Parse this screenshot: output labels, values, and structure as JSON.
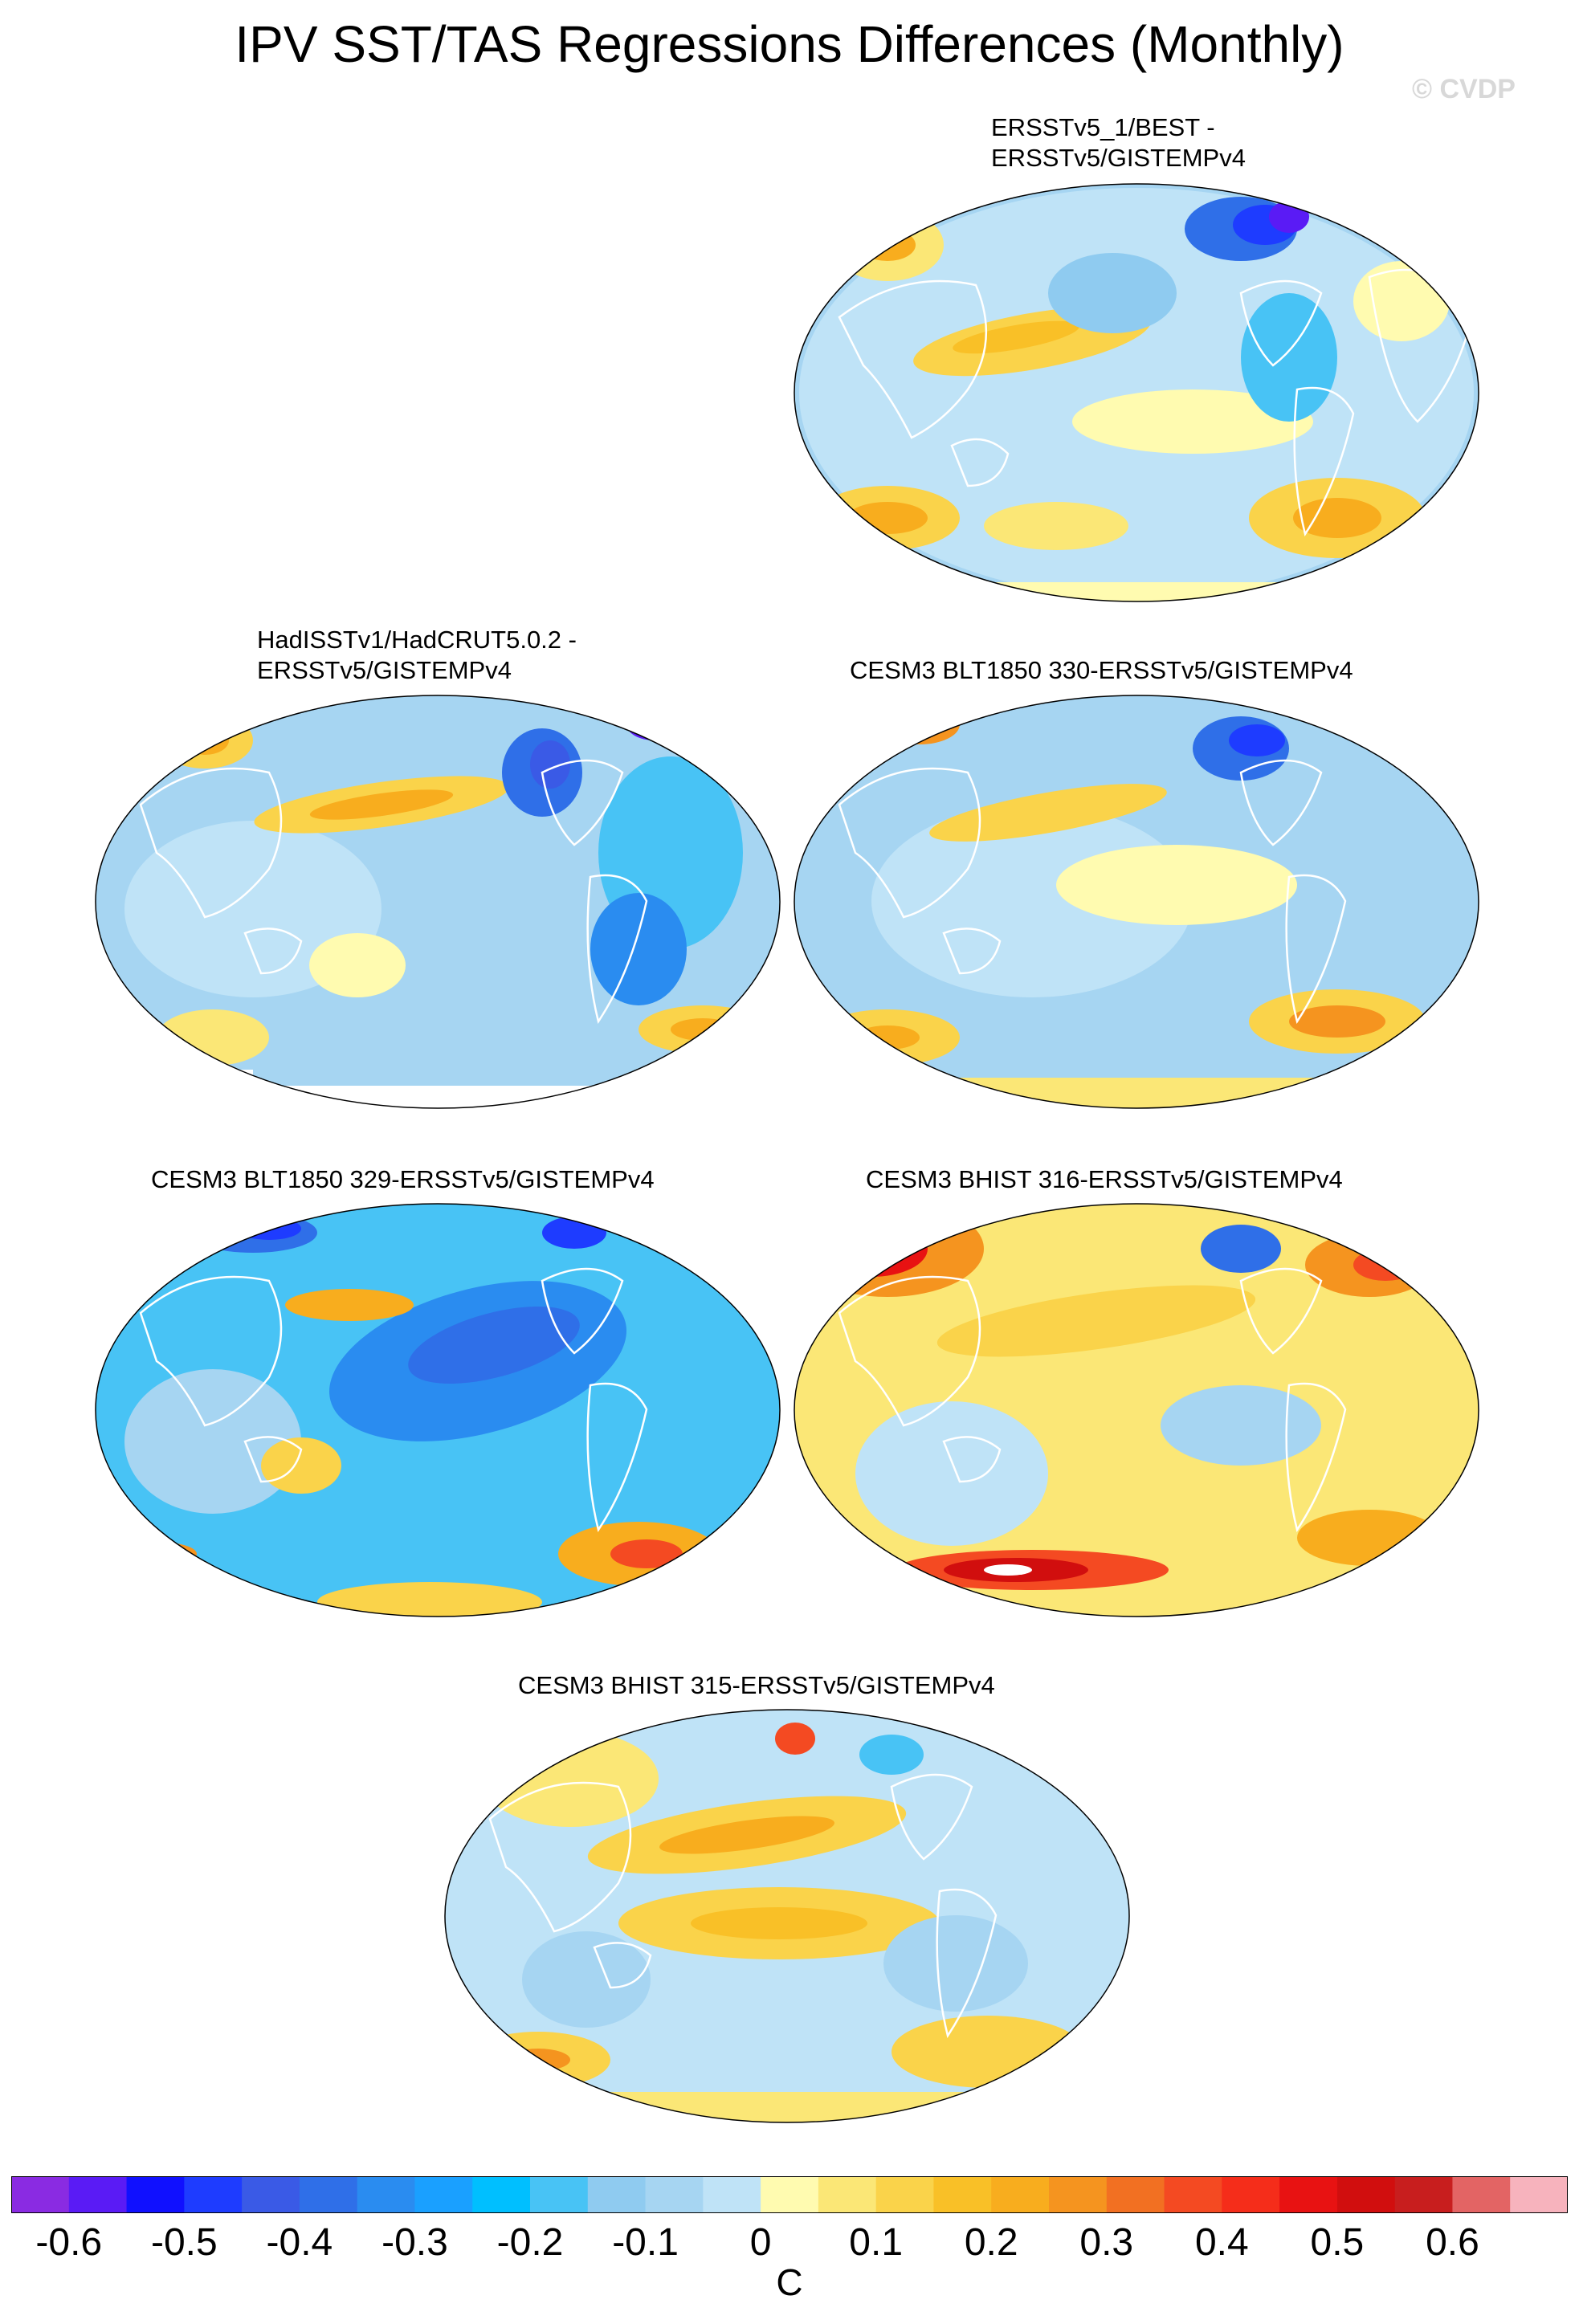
{
  "title": "IPV SST/TAS Regressions Differences (Monthly)",
  "copyright": "© CVDP",
  "panels": [
    {
      "id": "p1",
      "title": "ERSSTv5_1/BEST -\nERSSTv5/GISTEMPv4"
    },
    {
      "id": "p2",
      "title": "HadISSTv1/HadCRUT5.0.2 -\nERSSTv5/GISTEMPv4"
    },
    {
      "id": "p3",
      "title": "CESM3 BLT1850 330-ERSSTv5/GISTEMPv4"
    },
    {
      "id": "p4",
      "title": "CESM3 BLT1850 329-ERSSTv5/GISTEMPv4"
    },
    {
      "id": "p5",
      "title": "CESM3 BHIST 316-ERSSTv5/GISTEMPv4"
    },
    {
      "id": "p6",
      "title": "CESM3 BHIST 315-ERSSTv5/GISTEMPv4"
    }
  ],
  "colorbar": {
    "colors": [
      "#8a2be2",
      "#5a1bf5",
      "#1010ff",
      "#1e3cff",
      "#3a5ae6",
      "#2f6fe8",
      "#2a8cf0",
      "#1aa0ff",
      "#00bfff",
      "#48c3f5",
      "#8fcbf0",
      "#a6d5f2",
      "#bfe3f7",
      "#fffbb0",
      "#fbe776",
      "#fad34a",
      "#f9c027",
      "#f8ad1e",
      "#f5941f",
      "#f27022",
      "#f44a22",
      "#f52d1a",
      "#e81212",
      "#d10e0e",
      "#c81e1e",
      "#e36464",
      "#f7b3bd"
    ],
    "tick_labels": [
      "-0.6",
      "-0.5",
      "-0.4",
      "-0.3",
      "-0.2",
      "-0.1",
      "0",
      "0.1",
      "0.2",
      "0.3",
      "0.4",
      "0.5",
      "0.6"
    ],
    "units": "C"
  }
}
